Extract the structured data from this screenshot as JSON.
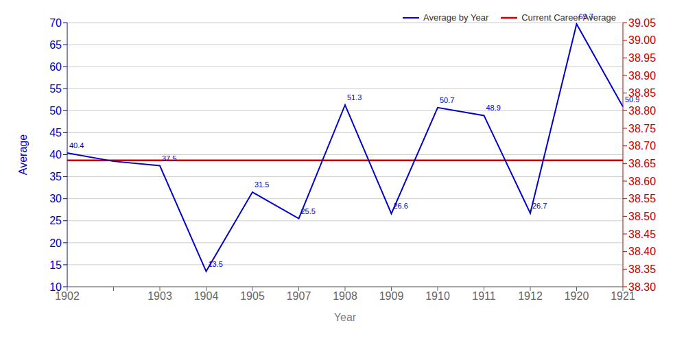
{
  "chart_data": {
    "type": "line",
    "xlabel": "Year",
    "ylabel": "Average",
    "categories": [
      "1902",
      null,
      "1903",
      "1904",
      "1905",
      "1907",
      "1908",
      "1909",
      "1910",
      "1911",
      "1912",
      "1920",
      "1921"
    ],
    "series": [
      {
        "name": "Average by Year",
        "color": "#0000cc",
        "values": [
          40.4,
          38.5,
          37.5,
          13.5,
          31.5,
          25.5,
          51.3,
          26.6,
          50.7,
          48.9,
          26.7,
          69.7,
          50.9
        ],
        "value_labels": [
          "40.4",
          null,
          "37.5",
          "13.5",
          "31.5",
          "25.5",
          "51.3",
          "26.6",
          "50.7",
          "48.9",
          "26.7",
          "69.7",
          "50.9"
        ]
      },
      {
        "name": "Current Career Average",
        "color": "#cc0000",
        "type": "hline",
        "value": 38.7
      }
    ],
    "ylim": [
      10,
      70
    ],
    "yticks": [
      10,
      15,
      20,
      25,
      30,
      35,
      40,
      45,
      50,
      55,
      60,
      65,
      70
    ],
    "y2lim": [
      38.3,
      39.05
    ],
    "y2ticks": [
      {
        "value": 38.3,
        "label": "38.30"
      },
      38.35,
      {
        "value": 38.4,
        "label": "38.40"
      },
      38.45,
      {
        "value": 38.5,
        "label": "38.50"
      },
      38.55,
      {
        "value": 38.6,
        "label": "38.60"
      },
      38.65,
      {
        "value": 38.7,
        "label": "38.70"
      },
      38.75,
      {
        "value": 38.8,
        "label": "38.80"
      },
      38.85,
      {
        "value": 38.9,
        "label": "38.90"
      },
      38.95,
      {
        "value": 39.0,
        "label": "39.00"
      },
      39.05
    ],
    "grid": "y",
    "legend": "upper right",
    "data_labels": true
  }
}
